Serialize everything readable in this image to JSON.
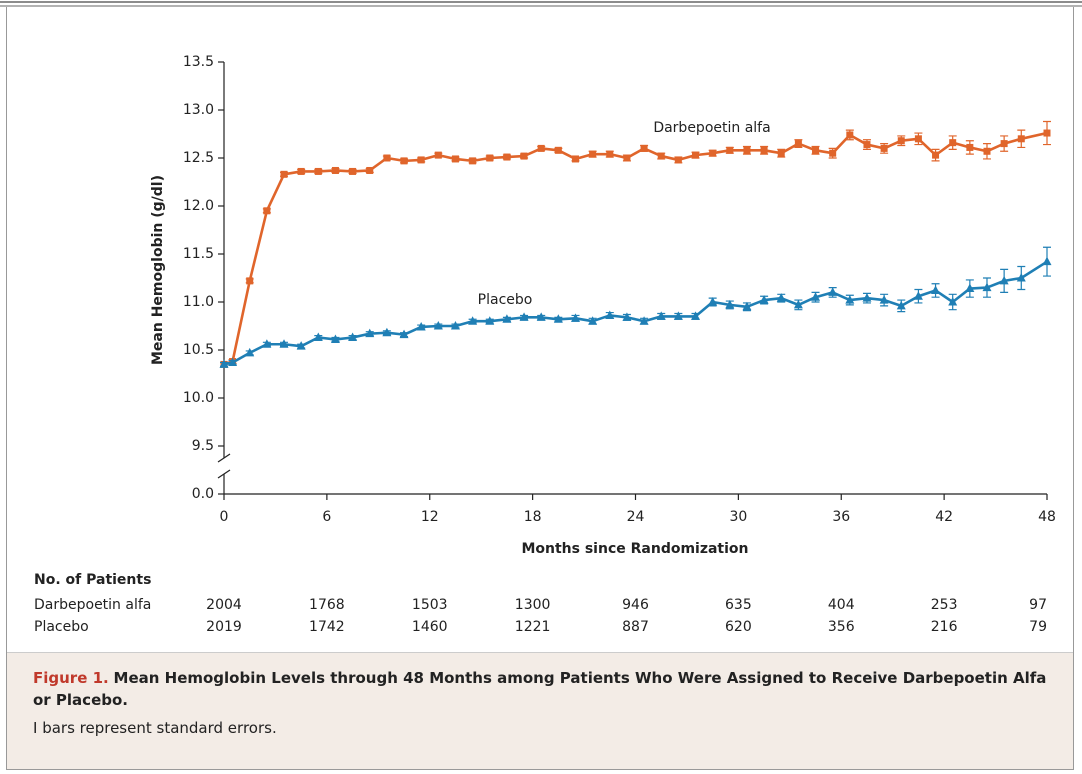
{
  "chart_data": {
    "type": "line",
    "ylabel": "Mean Hemoglobin (g/dl)",
    "xlabel": "Months since Randomization",
    "xlim": [
      0,
      48
    ],
    "xticks": [
      0,
      6,
      12,
      18,
      24,
      30,
      36,
      42,
      48
    ],
    "ylim": [
      0,
      13.5
    ],
    "y_break": [
      0,
      9
    ],
    "yticks": [
      {
        "value": 0,
        "label": "0.0"
      },
      9.5,
      {
        "value": 10,
        "label": "10.0"
      },
      10.5,
      {
        "value": 11,
        "label": "11.0"
      },
      11.5,
      {
        "value": 12,
        "label": "12.0"
      },
      12.5,
      {
        "value": 13,
        "label": "13.0"
      },
      13.5
    ],
    "x": [
      0,
      0.5,
      1.5,
      2.5,
      3.5,
      4.5,
      5.5,
      6.5,
      7.5,
      8.5,
      9.5,
      10.5,
      11.5,
      12.5,
      13.5,
      14.5,
      15.5,
      16.5,
      17.5,
      18.5,
      19.5,
      20.5,
      21.5,
      22.5,
      23.5,
      24.5,
      25.5,
      26.5,
      27.5,
      28.5,
      29.5,
      30.5,
      31.5,
      32.5,
      33.5,
      34.5,
      35.5,
      36.5,
      37.5,
      38.5,
      39.5,
      40.5,
      41.5,
      42.5,
      43.5,
      44.5,
      45.5,
      46.5,
      48
    ],
    "series": [
      {
        "name": "Darbepoetin alfa",
        "color": "#e0652b",
        "marker": "square",
        "values": [
          10.35,
          10.38,
          11.22,
          11.95,
          12.33,
          12.36,
          12.36,
          12.37,
          12.36,
          12.37,
          12.5,
          12.47,
          12.48,
          12.53,
          12.49,
          12.47,
          12.5,
          12.51,
          12.52,
          12.6,
          12.58,
          12.49,
          12.54,
          12.54,
          12.5,
          12.6,
          12.52,
          12.48,
          12.53,
          12.55,
          12.58,
          12.58,
          12.58,
          12.55,
          12.65,
          12.58,
          12.55,
          12.74,
          12.64,
          12.6,
          12.68,
          12.7,
          12.53,
          12.66,
          12.61,
          12.57,
          12.65,
          12.7,
          12.76
        ],
        "errors": [
          0.02,
          0.02,
          0.02,
          0.02,
          0.02,
          0.02,
          0.02,
          0.02,
          0.02,
          0.02,
          0.02,
          0.02,
          0.02,
          0.02,
          0.02,
          0.02,
          0.02,
          0.02,
          0.02,
          0.02,
          0.02,
          0.02,
          0.03,
          0.03,
          0.03,
          0.03,
          0.03,
          0.03,
          0.03,
          0.03,
          0.03,
          0.04,
          0.04,
          0.04,
          0.04,
          0.04,
          0.05,
          0.05,
          0.05,
          0.05,
          0.05,
          0.06,
          0.06,
          0.07,
          0.07,
          0.08,
          0.08,
          0.09,
          0.12
        ]
      },
      {
        "name": "Placebo",
        "color": "#1f7fb5",
        "marker": "triangle",
        "values": [
          10.35,
          10.37,
          10.47,
          10.56,
          10.56,
          10.54,
          10.63,
          10.61,
          10.63,
          10.67,
          10.68,
          10.66,
          10.74,
          10.75,
          10.75,
          10.8,
          10.8,
          10.82,
          10.84,
          10.84,
          10.82,
          10.83,
          10.8,
          10.86,
          10.84,
          10.8,
          10.85,
          10.85,
          10.85,
          11.0,
          10.97,
          10.95,
          11.02,
          11.04,
          10.97,
          11.05,
          11.1,
          11.02,
          11.04,
          11.02,
          10.96,
          11.06,
          11.12,
          11.0,
          11.14,
          11.15,
          11.22,
          11.25,
          11.42
        ],
        "errors": [
          0.02,
          0.02,
          0.02,
          0.02,
          0.02,
          0.02,
          0.02,
          0.02,
          0.02,
          0.02,
          0.02,
          0.02,
          0.02,
          0.02,
          0.02,
          0.02,
          0.02,
          0.02,
          0.02,
          0.02,
          0.02,
          0.03,
          0.03,
          0.03,
          0.03,
          0.03,
          0.03,
          0.03,
          0.03,
          0.04,
          0.04,
          0.04,
          0.04,
          0.04,
          0.05,
          0.05,
          0.05,
          0.05,
          0.05,
          0.06,
          0.06,
          0.07,
          0.07,
          0.08,
          0.09,
          0.1,
          0.12,
          0.12,
          0.15
        ]
      }
    ],
    "at_risk": {
      "title": "No. of Patients",
      "rows": [
        {
          "name": "Darbepoetin alfa",
          "values": [
            "2004",
            "1768",
            "1503",
            "1300",
            "946",
            "635",
            "404",
            "253",
            "97"
          ]
        },
        {
          "name": "Placebo",
          "values": [
            "2019",
            "1742",
            "1460",
            "1221",
            "887",
            "620",
            "356",
            "216",
            "79"
          ]
        }
      ]
    }
  },
  "caption": {
    "label": "Figure 1.",
    "title": "Mean Hemoglobin Levels through 48 Months among Patients Who Were Assigned to Receive Darbepoetin Alfa or Placebo.",
    "note": "I bars represent standard errors."
  }
}
